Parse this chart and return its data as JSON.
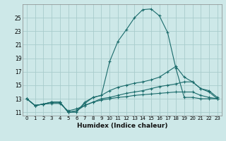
{
  "xlabel": "Humidex (Indice chaleur)",
  "bg_color": "#cde8e8",
  "grid_color": "#a8cccc",
  "line_color": "#1a6b6b",
  "xlim": [
    -0.5,
    23.5
  ],
  "ylim": [
    10.5,
    27.0
  ],
  "yticks": [
    11,
    13,
    15,
    17,
    19,
    21,
    23,
    25
  ],
  "xticks": [
    0,
    1,
    2,
    3,
    4,
    5,
    6,
    7,
    8,
    9,
    10,
    11,
    12,
    13,
    14,
    15,
    16,
    17,
    18,
    19,
    20,
    21,
    22,
    23
  ],
  "series": [
    [
      13.0,
      12.0,
      12.2,
      12.5,
      12.5,
      11.0,
      11.0,
      12.5,
      13.2,
      13.5,
      18.5,
      21.5,
      23.2,
      25.0,
      26.2,
      26.3,
      25.3,
      22.8,
      17.5,
      13.2,
      13.2,
      13.0,
      13.0,
      13.0
    ],
    [
      13.0,
      12.0,
      12.2,
      12.5,
      12.5,
      11.0,
      11.2,
      12.3,
      13.2,
      13.5,
      14.2,
      14.7,
      15.0,
      15.3,
      15.5,
      15.8,
      16.2,
      17.0,
      17.8,
      16.2,
      15.5,
      14.5,
      14.2,
      13.2
    ],
    [
      13.0,
      12.0,
      12.2,
      12.5,
      12.5,
      11.0,
      11.2,
      12.0,
      12.5,
      13.0,
      13.2,
      13.5,
      13.8,
      14.0,
      14.2,
      14.5,
      14.8,
      15.0,
      15.2,
      15.5,
      15.5,
      14.5,
      14.0,
      13.0
    ],
    [
      13.0,
      12.0,
      12.2,
      12.3,
      12.3,
      11.2,
      11.5,
      12.0,
      12.5,
      12.8,
      13.0,
      13.2,
      13.3,
      13.5,
      13.6,
      13.7,
      13.8,
      13.9,
      14.0,
      14.0,
      14.0,
      13.5,
      13.2,
      13.0
    ]
  ]
}
